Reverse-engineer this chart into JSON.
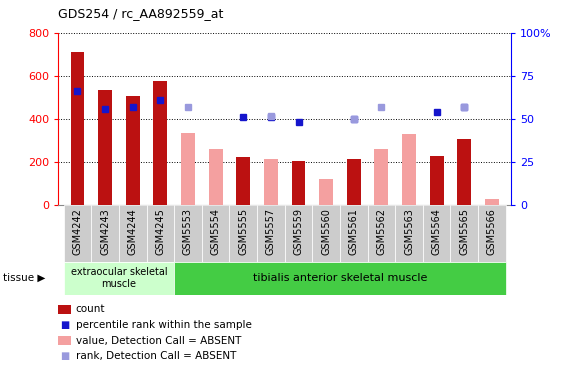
{
  "title": "GDS254 / rc_AA892559_at",
  "categories": [
    "GSM4242",
    "GSM4243",
    "GSM4244",
    "GSM4245",
    "GSM5553",
    "GSM5554",
    "GSM5555",
    "GSM5557",
    "GSM5559",
    "GSM5560",
    "GSM5561",
    "GSM5562",
    "GSM5563",
    "GSM5564",
    "GSM5565",
    "GSM5566"
  ],
  "count_values": [
    710,
    535,
    505,
    575,
    null,
    null,
    225,
    null,
    205,
    null,
    215,
    null,
    null,
    230,
    305,
    null
  ],
  "count_absent_values": [
    null,
    null,
    null,
    null,
    335,
    260,
    null,
    215,
    null,
    120,
    null,
    260,
    330,
    null,
    null,
    30
  ],
  "percentile_values": [
    66,
    56,
    57,
    61,
    null,
    null,
    51,
    51,
    48,
    null,
    50,
    null,
    null,
    54,
    57,
    null
  ],
  "percentile_absent_values": [
    null,
    null,
    null,
    null,
    57,
    null,
    null,
    52,
    null,
    null,
    50,
    57,
    null,
    null,
    57,
    null
  ],
  "tissue_groups": [
    {
      "label": "extraocular skeletal\nmuscle",
      "start": 0,
      "end": 4
    },
    {
      "label": "tibialis anterior skeletal muscle",
      "start": 4,
      "end": 16
    }
  ],
  "ylim_left": [
    0,
    800
  ],
  "ylim_right": [
    0,
    100
  ],
  "yticks_left": [
    0,
    200,
    400,
    600,
    800
  ],
  "yticks_right": [
    0,
    25,
    50,
    75,
    100
  ],
  "yticklabels_right": [
    "0",
    "25",
    "50",
    "75",
    "100%"
  ],
  "bar_color_count": "#bb1111",
  "bar_color_absent": "#f4a0a0",
  "dot_color_percentile": "#1515cc",
  "dot_color_percentile_absent": "#9999dd",
  "tissue_bg_color_1": "#ccffcc",
  "tissue_bg_color_2": "#44cc44",
  "bar_width": 0.5,
  "legend_items": [
    {
      "color": "#bb1111",
      "type": "rect",
      "label": "count"
    },
    {
      "color": "#1515cc",
      "type": "square",
      "label": "percentile rank within the sample"
    },
    {
      "color": "#f4a0a0",
      "type": "rect",
      "label": "value, Detection Call = ABSENT"
    },
    {
      "color": "#9999dd",
      "type": "square",
      "label": "rank, Detection Call = ABSENT"
    }
  ]
}
